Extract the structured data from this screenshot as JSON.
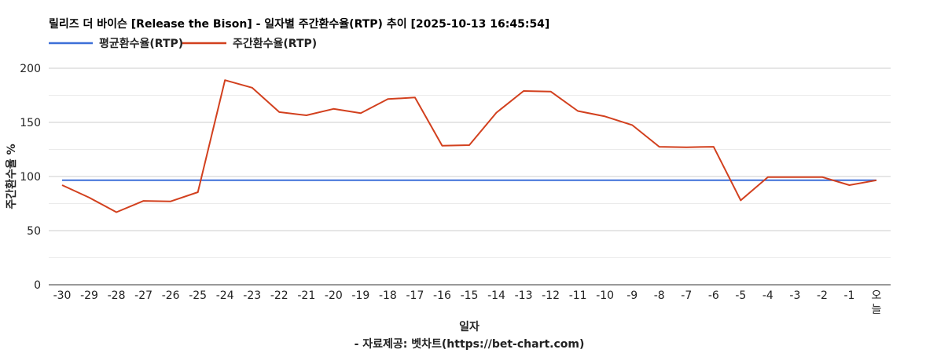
{
  "chart_data": {
    "type": "line",
    "title": "릴리즈 더 바이슨 [Release the Bison] - 일자별 주간환수율(RTP) 추이 [2025-10-13 16:45:54]",
    "xlabel": "일자",
    "source": "- 자료제공: 벳차트(https://bet-chart.com)",
    "ylabel": "주간환수율 %",
    "ylim": [
      0,
      200
    ],
    "yticks": [
      0,
      50,
      100,
      150,
      200
    ],
    "legend_position": "top-left",
    "grid": true,
    "categories": [
      "-30",
      "-29",
      "-28",
      "-27",
      "-26",
      "-25",
      "-24",
      "-23",
      "-22",
      "-21",
      "-20",
      "-19",
      "-18",
      "-17",
      "-16",
      "-15",
      "-14",
      "-13",
      "-12",
      "-11",
      "-10",
      "-9",
      "-8",
      "-7",
      "-6",
      "-5",
      "-4",
      "-3",
      "-2",
      "-1",
      "오늘"
    ],
    "series": [
      {
        "name": "평균환수율(RTP)",
        "color": "#3c6fd8",
        "values": [
          96.5,
          96.5,
          96.5,
          96.5,
          96.5,
          96.5,
          96.5,
          96.5,
          96.5,
          96.5,
          96.5,
          96.5,
          96.5,
          96.5,
          96.5,
          96.5,
          96.5,
          96.5,
          96.5,
          96.5,
          96.5,
          96.5,
          96.5,
          96.5,
          96.5,
          96.5,
          96.5,
          96.5,
          96.5,
          96.5,
          96.5
        ]
      },
      {
        "name": "주간환수율(RTP)",
        "color": "#d2401e",
        "values": [
          92,
          80.5,
          67,
          77.5,
          77,
          85.5,
          189,
          182,
          159.5,
          156.5,
          162.5,
          158.5,
          171.5,
          173,
          128.5,
          129,
          159,
          179,
          178.5,
          160.5,
          155.5,
          147.5,
          127.5,
          127,
          127.5,
          78,
          99.5,
          99.5,
          99.5,
          92,
          96.5
        ]
      }
    ]
  }
}
